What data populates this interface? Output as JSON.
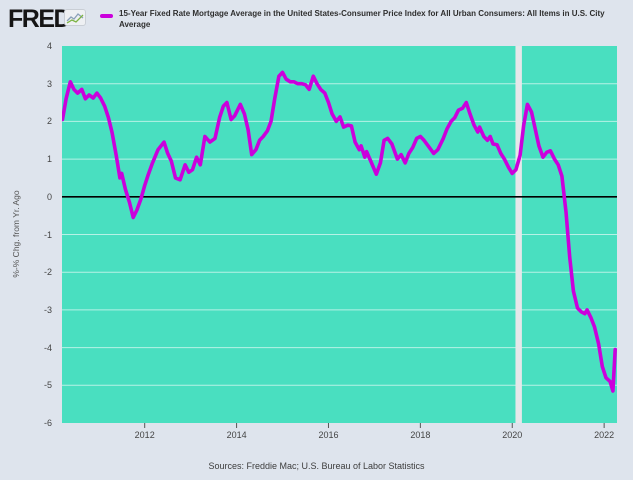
{
  "header": {
    "brand": "FRED",
    "registered_mark": "®",
    "legend": {
      "series_label": "15-Year Fixed Rate Mortgage Average in the United States-Consumer Price Index for All Urban Consumers: All Items in U.S. City Average",
      "swatch_color": "#cb00dc"
    }
  },
  "footer": {
    "sources": "Sources: Freddie Mac; U.S. Bureau of Labor Statistics"
  },
  "colors": {
    "page_background": "#dee4ed",
    "plot_background": "#49dfc0",
    "line": "#cb00dc",
    "zero_line": "#000000",
    "gridline": "rgba(255,255,255,0.6)",
    "recession_band": "#e6e7ea",
    "tick_text": "#444444"
  },
  "chart_data": {
    "type": "line",
    "title": "",
    "xlabel": "",
    "ylabel": "%-% Chg. from Yr. Ago",
    "xlim": [
      2010.2,
      2022.28
    ],
    "ylim": [
      -6,
      4
    ],
    "y_ticks": [
      4,
      3,
      2,
      1,
      0,
      -1,
      -2,
      -3,
      -4,
      -5,
      -6
    ],
    "x_ticks": [
      "2012",
      "2014",
      "2016",
      "2018",
      "2020",
      "2022"
    ],
    "x_tick_values": [
      2012,
      2014,
      2016,
      2018,
      2020,
      2022
    ],
    "grid": "horizontal-white",
    "zero_line": true,
    "legend_position": "top",
    "recession_band_x": [
      2020.07,
      2020.21
    ],
    "series": [
      {
        "name": "15-Year Fixed Rate Mortgage Average in the United States-Consumer Price Index for All Urban Consumers: All Items in U.S. City Average",
        "color": "#cb00dc",
        "points": [
          [
            2010.21,
            2.05
          ],
          [
            2010.29,
            2.6
          ],
          [
            2010.38,
            3.05
          ],
          [
            2010.46,
            2.85
          ],
          [
            2010.54,
            2.75
          ],
          [
            2010.63,
            2.85
          ],
          [
            2010.71,
            2.6
          ],
          [
            2010.79,
            2.7
          ],
          [
            2010.88,
            2.62
          ],
          [
            2010.96,
            2.75
          ],
          [
            2011.04,
            2.62
          ],
          [
            2011.13,
            2.4
          ],
          [
            2011.21,
            2.1
          ],
          [
            2011.29,
            1.7
          ],
          [
            2011.38,
            1.1
          ],
          [
            2011.46,
            0.5
          ],
          [
            2011.5,
            0.62
          ],
          [
            2011.58,
            0.2
          ],
          [
            2011.67,
            -0.15
          ],
          [
            2011.75,
            -0.55
          ],
          [
            2011.83,
            -0.35
          ],
          [
            2011.92,
            -0.05
          ],
          [
            2012.0,
            0.3
          ],
          [
            2012.08,
            0.6
          ],
          [
            2012.17,
            0.9
          ],
          [
            2012.29,
            1.25
          ],
          [
            2012.42,
            1.45
          ],
          [
            2012.5,
            1.15
          ],
          [
            2012.58,
            0.95
          ],
          [
            2012.67,
            0.5
          ],
          [
            2012.77,
            0.45
          ],
          [
            2012.88,
            0.85
          ],
          [
            2012.96,
            0.65
          ],
          [
            2013.04,
            0.72
          ],
          [
            2013.13,
            1.05
          ],
          [
            2013.21,
            0.85
          ],
          [
            2013.31,
            1.6
          ],
          [
            2013.42,
            1.45
          ],
          [
            2013.53,
            1.55
          ],
          [
            2013.63,
            2.1
          ],
          [
            2013.71,
            2.4
          ],
          [
            2013.79,
            2.5
          ],
          [
            2013.88,
            2.05
          ],
          [
            2013.96,
            2.15
          ],
          [
            2014.08,
            2.45
          ],
          [
            2014.17,
            2.2
          ],
          [
            2014.25,
            1.78
          ],
          [
            2014.33,
            1.12
          ],
          [
            2014.42,
            1.25
          ],
          [
            2014.5,
            1.5
          ],
          [
            2014.58,
            1.6
          ],
          [
            2014.67,
            1.75
          ],
          [
            2014.75,
            2.0
          ],
          [
            2014.83,
            2.6
          ],
          [
            2014.92,
            3.2
          ],
          [
            2015.0,
            3.3
          ],
          [
            2015.08,
            3.12
          ],
          [
            2015.17,
            3.05
          ],
          [
            2015.25,
            3.05
          ],
          [
            2015.33,
            3.0
          ],
          [
            2015.42,
            3.0
          ],
          [
            2015.5,
            2.97
          ],
          [
            2015.58,
            2.85
          ],
          [
            2015.67,
            3.2
          ],
          [
            2015.75,
            3.0
          ],
          [
            2015.83,
            2.85
          ],
          [
            2015.92,
            2.75
          ],
          [
            2016.0,
            2.5
          ],
          [
            2016.08,
            2.2
          ],
          [
            2016.17,
            2.0
          ],
          [
            2016.25,
            2.12
          ],
          [
            2016.33,
            1.85
          ],
          [
            2016.42,
            1.9
          ],
          [
            2016.5,
            1.88
          ],
          [
            2016.58,
            1.45
          ],
          [
            2016.67,
            1.25
          ],
          [
            2016.71,
            1.35
          ],
          [
            2016.79,
            1.05
          ],
          [
            2016.83,
            1.2
          ],
          [
            2016.92,
            0.95
          ],
          [
            2017.04,
            0.6
          ],
          [
            2017.13,
            0.9
          ],
          [
            2017.21,
            1.5
          ],
          [
            2017.29,
            1.55
          ],
          [
            2017.38,
            1.4
          ],
          [
            2017.5,
            1.0
          ],
          [
            2017.58,
            1.12
          ],
          [
            2017.67,
            0.9
          ],
          [
            2017.75,
            1.15
          ],
          [
            2017.83,
            1.3
          ],
          [
            2017.92,
            1.55
          ],
          [
            2018.0,
            1.6
          ],
          [
            2018.08,
            1.5
          ],
          [
            2018.17,
            1.35
          ],
          [
            2018.29,
            1.15
          ],
          [
            2018.38,
            1.25
          ],
          [
            2018.5,
            1.55
          ],
          [
            2018.58,
            1.8
          ],
          [
            2018.67,
            2.0
          ],
          [
            2018.75,
            2.1
          ],
          [
            2018.83,
            2.3
          ],
          [
            2018.92,
            2.35
          ],
          [
            2019.0,
            2.5
          ],
          [
            2019.08,
            2.2
          ],
          [
            2019.17,
            1.9
          ],
          [
            2019.25,
            1.72
          ],
          [
            2019.29,
            1.85
          ],
          [
            2019.38,
            1.6
          ],
          [
            2019.46,
            1.5
          ],
          [
            2019.52,
            1.6
          ],
          [
            2019.58,
            1.4
          ],
          [
            2019.67,
            1.38
          ],
          [
            2019.75,
            1.15
          ],
          [
            2019.83,
            1.0
          ],
          [
            2019.92,
            0.78
          ],
          [
            2020.0,
            0.62
          ],
          [
            2020.08,
            0.72
          ],
          [
            2020.17,
            1.1
          ],
          [
            2020.25,
            1.9
          ],
          [
            2020.33,
            2.45
          ],
          [
            2020.42,
            2.25
          ],
          [
            2020.5,
            1.8
          ],
          [
            2020.58,
            1.35
          ],
          [
            2020.67,
            1.05
          ],
          [
            2020.75,
            1.18
          ],
          [
            2020.83,
            1.22
          ],
          [
            2020.92,
            1.0
          ],
          [
            2021.0,
            0.85
          ],
          [
            2021.08,
            0.55
          ],
          [
            2021.17,
            -0.4
          ],
          [
            2021.25,
            -1.6
          ],
          [
            2021.33,
            -2.5
          ],
          [
            2021.42,
            -2.95
          ],
          [
            2021.5,
            -3.05
          ],
          [
            2021.58,
            -3.1
          ],
          [
            2021.63,
            -3.0
          ],
          [
            2021.71,
            -3.2
          ],
          [
            2021.79,
            -3.45
          ],
          [
            2021.88,
            -3.9
          ],
          [
            2021.96,
            -4.5
          ],
          [
            2022.04,
            -4.8
          ],
          [
            2022.13,
            -4.9
          ],
          [
            2022.19,
            -5.15
          ],
          [
            2022.24,
            -4.05
          ]
        ]
      }
    ]
  }
}
